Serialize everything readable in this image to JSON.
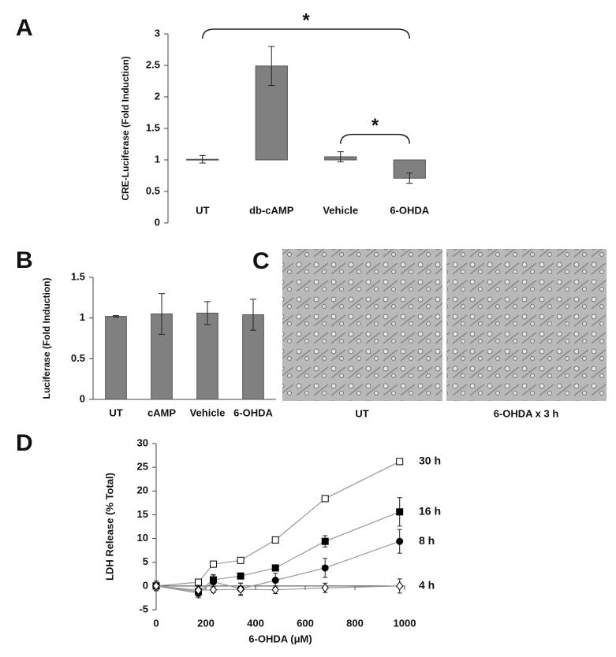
{
  "chart_data": [
    {
      "type": "bar",
      "panel": "A",
      "ylabel": "CRE-Luciferase (Fold Induction)",
      "categories": [
        "UT",
        "db-cAMP",
        "Vehicle",
        "6-OHDA"
      ],
      "values": [
        1.01,
        2.49,
        1.05,
        0.71
      ],
      "errors": [
        0.06,
        0.31,
        0.08,
        0.08
      ],
      "baseline": 1,
      "color": "#808080",
      "ylim": [
        0,
        3
      ],
      "yticks": [
        0,
        0.5,
        1,
        1.5,
        2,
        2.5,
        3
      ],
      "annotations": [
        {
          "text": "*",
          "from": 0,
          "to": 3
        },
        {
          "text": "*",
          "from": 2,
          "to": 3
        }
      ]
    },
    {
      "type": "bar",
      "panel": "B",
      "ylabel": "Luciferase (Fold Induction)",
      "categories": [
        "UT",
        "cAMP",
        "Vehicle",
        "6-OHDA"
      ],
      "values": [
        1.02,
        1.05,
        1.06,
        1.04
      ],
      "errors": [
        0.01,
        0.25,
        0.14,
        0.19
      ],
      "baseline": 0,
      "color": "#808080",
      "ylim": [
        0,
        1.5
      ],
      "yticks": [
        0,
        0.5,
        1,
        1.5
      ]
    },
    {
      "type": "line",
      "panel": "D",
      "xlabel": "6-OHDA (μM)",
      "ylabel": "LDH Release (% Total)",
      "x": [
        0,
        170,
        230,
        340,
        480,
        680,
        980
      ],
      "series": [
        {
          "name": "30 h",
          "color": "#999999",
          "marker": "square-open",
          "values": [
            0,
            0.8,
            4.6,
            5.4,
            9.7,
            18.4,
            26.2
          ]
        },
        {
          "name": "16 h",
          "color": "#999999",
          "marker": "square",
          "values": [
            0,
            -1.2,
            1.3,
            2.1,
            3.8,
            9.4,
            15.6
          ],
          "errors": [
            1,
            1,
            1,
            0.3,
            0.3,
            1.2,
            3
          ]
        },
        {
          "name": "8 h",
          "color": "#999999",
          "marker": "circle",
          "values": [
            0,
            -1.5,
            0.9,
            -0.6,
            1.2,
            3.8,
            9.4
          ],
          "errors": [
            1,
            1,
            1.5,
            1.2,
            1.5,
            2,
            2.5
          ]
        },
        {
          "name": "4 h",
          "color": "#999999",
          "marker": "diamond-open",
          "values": [
            0,
            -0.9,
            -0.8,
            -0.7,
            -0.8,
            -0.4,
            0
          ],
          "errors": [
            1,
            0.8,
            0.6,
            1.3,
            0.8,
            1,
            1.5
          ]
        }
      ],
      "xlim": [
        0,
        1000
      ],
      "xticks": [
        0,
        200,
        400,
        600,
        800,
        1000
      ],
      "ylim": [
        -5,
        30
      ],
      "yticks": [
        -5,
        0,
        5,
        10,
        15,
        20,
        25,
        30
      ]
    }
  ],
  "panel_c": {
    "panel": "C",
    "captions": [
      "UT",
      "6-OHDA x 3 h"
    ]
  }
}
